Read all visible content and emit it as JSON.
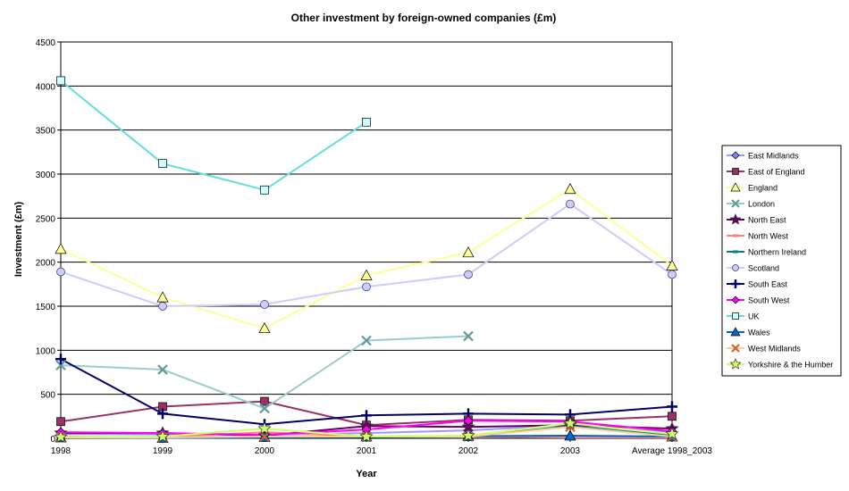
{
  "chart_data": {
    "type": "line",
    "title": "Other investment by foreign-owned companies (£m)",
    "xlabel": "Year",
    "ylabel": "Investment (£m)",
    "categories": [
      "1998",
      "1999",
      "2000",
      "2001",
      "2002",
      "2003",
      "Average 1998_2003"
    ],
    "ylim": [
      0,
      4500
    ],
    "yticks": [
      0,
      500,
      1000,
      1500,
      2000,
      2500,
      3000,
      3500,
      4000,
      4500
    ],
    "grid": "horizontal",
    "legend_position": "right",
    "series": [
      {
        "name": "East Midlands",
        "color": "#8080ff",
        "line": "#9999ff",
        "marker": "diamond",
        "values": [
          50,
          45,
          40,
          60,
          90,
          150,
          70
        ]
      },
      {
        "name": "East of England",
        "color": "#993366",
        "line": "#993366",
        "marker": "square",
        "values": [
          190,
          360,
          420,
          150,
          210,
          200,
          250
        ]
      },
      {
        "name": "England",
        "color": "#ffff99",
        "line": "#ffff99",
        "marker": "triangle",
        "values": [
          2150,
          1600,
          1250,
          1850,
          2110,
          2830,
          1960
        ]
      },
      {
        "name": "London",
        "color": "#669999",
        "line": "#99cccc",
        "marker": "x",
        "values": [
          830,
          780,
          340,
          1110,
          1160,
          null,
          null
        ]
      },
      {
        "name": "North East",
        "color": "#660066",
        "line": "#660066",
        "marker": "star",
        "values": [
          60,
          60,
          30,
          140,
          130,
          150,
          110
        ]
      },
      {
        "name": "North West",
        "color": "#ff8080",
        "line": "#ff8080",
        "marker": "dash",
        "values": [
          20,
          10,
          70,
          20,
          20,
          10,
          10
        ]
      },
      {
        "name": "Northern Ireland",
        "color": "#008080",
        "line": "#008080",
        "marker": "dash",
        "values": [
          10,
          5,
          10,
          15,
          20,
          140,
          30
        ]
      },
      {
        "name": "Scotland",
        "color": "#ccccff",
        "line": "#ccccff",
        "marker": "circle",
        "values": [
          1890,
          1500,
          1520,
          1720,
          1860,
          2660,
          1860
        ]
      },
      {
        "name": "South East",
        "color": "#000066",
        "line": "#000066",
        "marker": "plus",
        "values": [
          900,
          280,
          160,
          260,
          280,
          270,
          360
        ]
      },
      {
        "name": "South West",
        "color": "#ff00ff",
        "line": "#ff00ff",
        "marker": "diamond",
        "values": [
          70,
          60,
          40,
          100,
          200,
          190,
          80
        ]
      },
      {
        "name": "UK",
        "color": "#ccffff",
        "line": "#66dddd",
        "marker": "square",
        "values": [
          4060,
          3120,
          2820,
          3590,
          null,
          null,
          null
        ]
      },
      {
        "name": "Wales",
        "color": "#0066cc",
        "line": "#0066cc",
        "marker": "triangle",
        "values": [
          10,
          5,
          15,
          20,
          25,
          30,
          20
        ]
      },
      {
        "name": "West Midlands",
        "color": "#cc6633",
        "line": "#ffcc99",
        "marker": "x",
        "values": [
          10,
          10,
          20,
          20,
          20,
          130,
          20
        ]
      },
      {
        "name": "Yorkshire & the Humber",
        "color": "#ccff66",
        "line": "#ccff66",
        "marker": "star",
        "values": [
          15,
          20,
          110,
          20,
          30,
          170,
          50
        ]
      }
    ]
  }
}
